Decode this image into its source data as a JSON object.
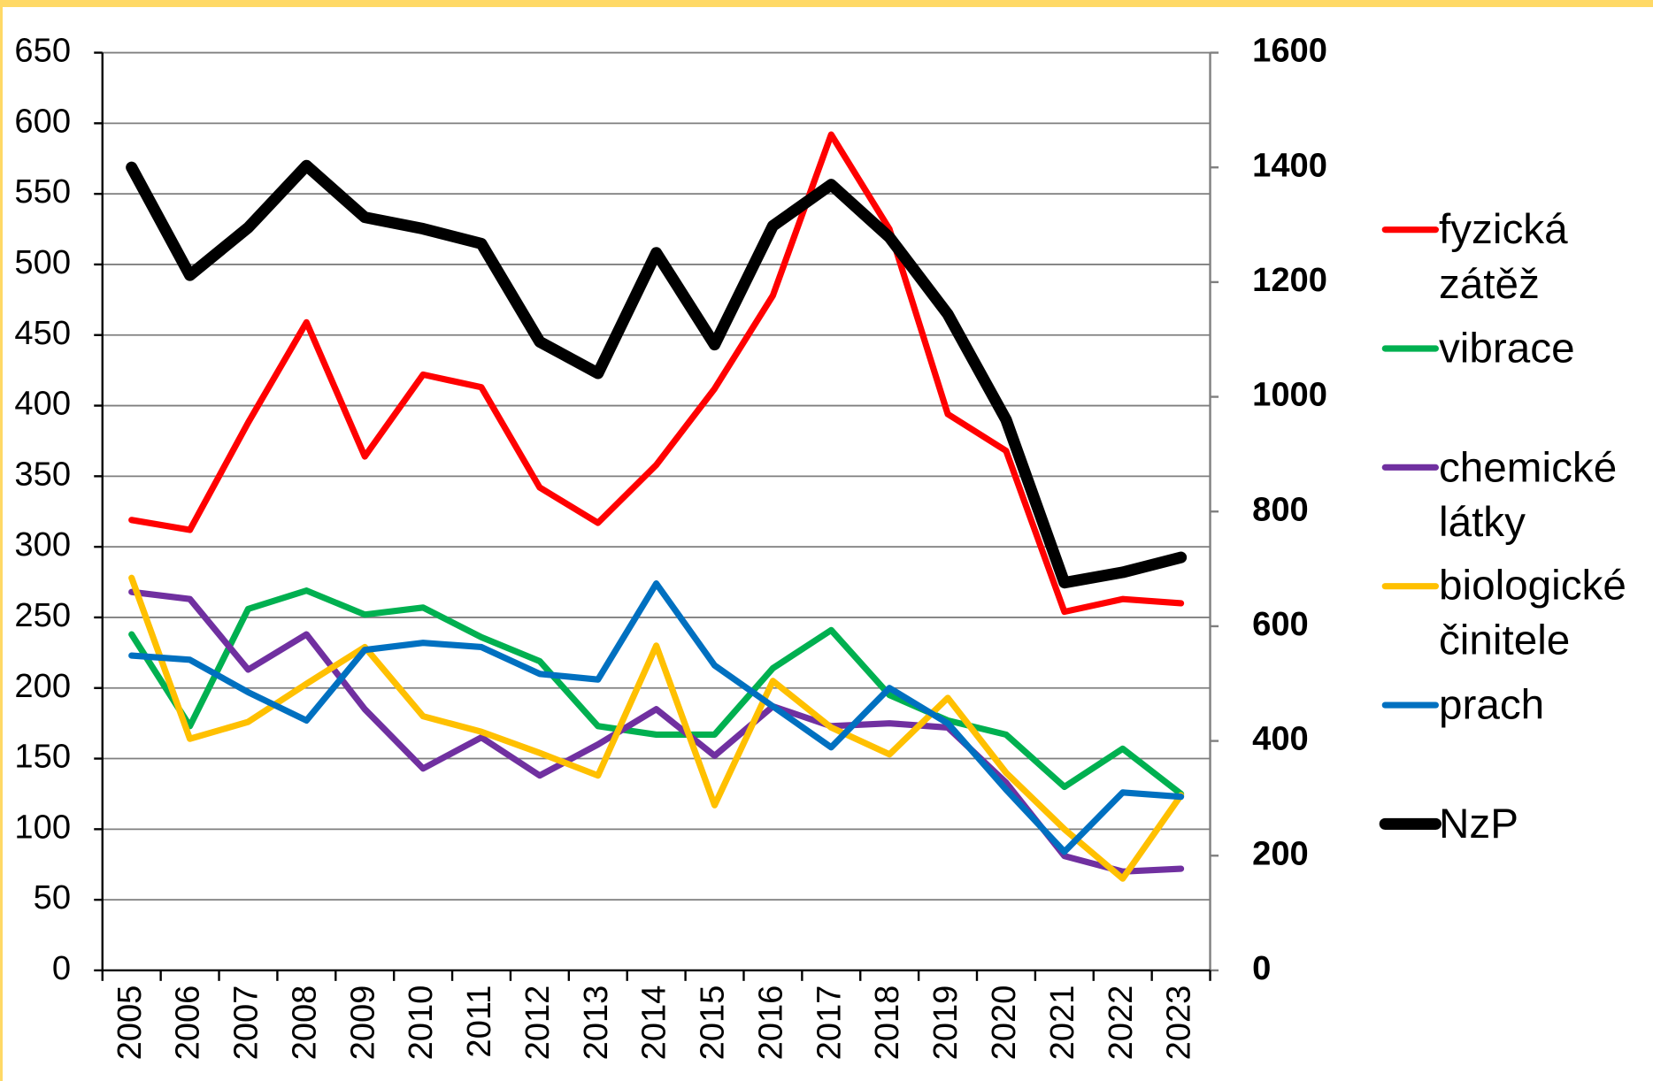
{
  "chart_data": {
    "type": "line",
    "categories": [
      "2005",
      "2006",
      "2007",
      "2008",
      "2009",
      "2010",
      "2011",
      "2012",
      "2013",
      "2014",
      "2015",
      "2016",
      "2017",
      "2018",
      "2019",
      "2020",
      "2021",
      "2022",
      "2023"
    ],
    "ylim": [
      0,
      650
    ],
    "yticks": [
      0,
      50,
      100,
      150,
      200,
      250,
      300,
      350,
      400,
      450,
      500,
      550,
      600,
      650
    ],
    "y2lim": [
      0,
      1600
    ],
    "y2ticks": [
      0,
      200,
      400,
      600,
      800,
      1000,
      1200,
      1400,
      1600
    ],
    "grid": true,
    "legend": "right",
    "series": [
      {
        "name": "fyzická zátěž",
        "color": "#ff0000",
        "values": [
          319,
          312,
          388,
          459,
          364,
          422,
          413,
          342,
          317,
          358,
          412,
          478,
          592,
          525,
          394,
          368,
          254,
          263,
          260
        ]
      },
      {
        "name": "vibrace",
        "color": "#00b050",
        "values": [
          238,
          173,
          256,
          269,
          252,
          257,
          236,
          219,
          173,
          167,
          167,
          214,
          241,
          195,
          177,
          167,
          130,
          157,
          125
        ]
      },
      {
        "name": "chemické látky",
        "color": "#7030a0",
        "values": [
          268,
          263,
          213,
          238,
          185,
          143,
          165,
          138,
          160,
          185,
          152,
          187,
          173,
          175,
          172,
          133,
          81,
          70,
          72
        ]
      },
      {
        "name": "biologické činitele",
        "color": "#ffc000",
        "values": [
          278,
          164,
          176,
          203,
          229,
          180,
          169,
          154,
          138,
          230,
          117,
          205,
          172,
          153,
          193,
          140,
          100,
          65,
          124
        ]
      },
      {
        "name": "prach",
        "color": "#0070c0",
        "values": [
          223,
          220,
          197,
          177,
          227,
          232,
          229,
          210,
          206,
          274,
          216,
          187,
          158,
          200,
          175,
          128,
          84,
          126,
          123
        ]
      },
      {
        "name": "NzP",
        "color": "#000000",
        "axis": "y2",
        "values": [
          1400,
          1212,
          1295,
          1403,
          1313,
          1293,
          1267,
          1096,
          1041,
          1251,
          1091,
          1298,
          1370,
          1278,
          1144,
          960,
          676,
          694,
          720
        ]
      }
    ]
  }
}
